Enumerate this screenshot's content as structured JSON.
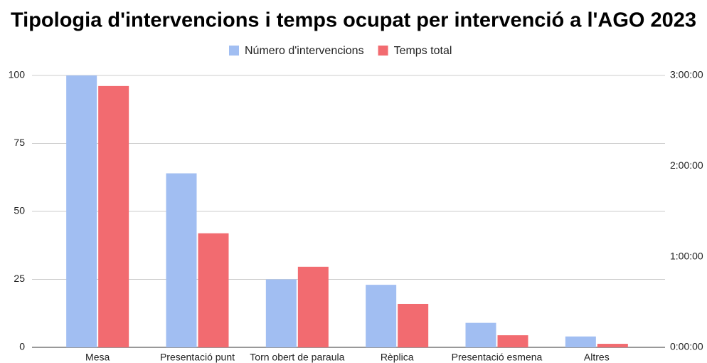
{
  "chart_data": {
    "type": "bar",
    "title": "Tipologia d'intervencions i temps ocupat per intervenció a l'AGO 2023",
    "categories": [
      "Mesa",
      "Presentació punt",
      "Torn obert de paraula",
      "Rèplica",
      "Presentació esmena",
      "Altres"
    ],
    "series": [
      {
        "name": "Número d'intervencions",
        "color": "#a1bef2",
        "values": [
          100,
          64,
          25,
          23,
          9,
          4
        ]
      },
      {
        "name": "Temps total",
        "color": "#f26b70",
        "axis": "y2",
        "values": [
          10380,
          4530,
          3200,
          1725,
          480,
          140
        ]
      }
    ],
    "ylim": [
      0,
      100
    ],
    "yticks": [
      0,
      25,
      50,
      75,
      100
    ],
    "y2lim": [
      0,
      10800
    ],
    "y2ticks": [
      {
        "value": 0,
        "label": "0:00:00"
      },
      {
        "value": 3600,
        "label": "1:00:00"
      },
      {
        "value": 7200,
        "label": "2:00:00"
      },
      {
        "value": 10800,
        "label": "3:00:00"
      }
    ],
    "grid": true,
    "legend": "top"
  }
}
